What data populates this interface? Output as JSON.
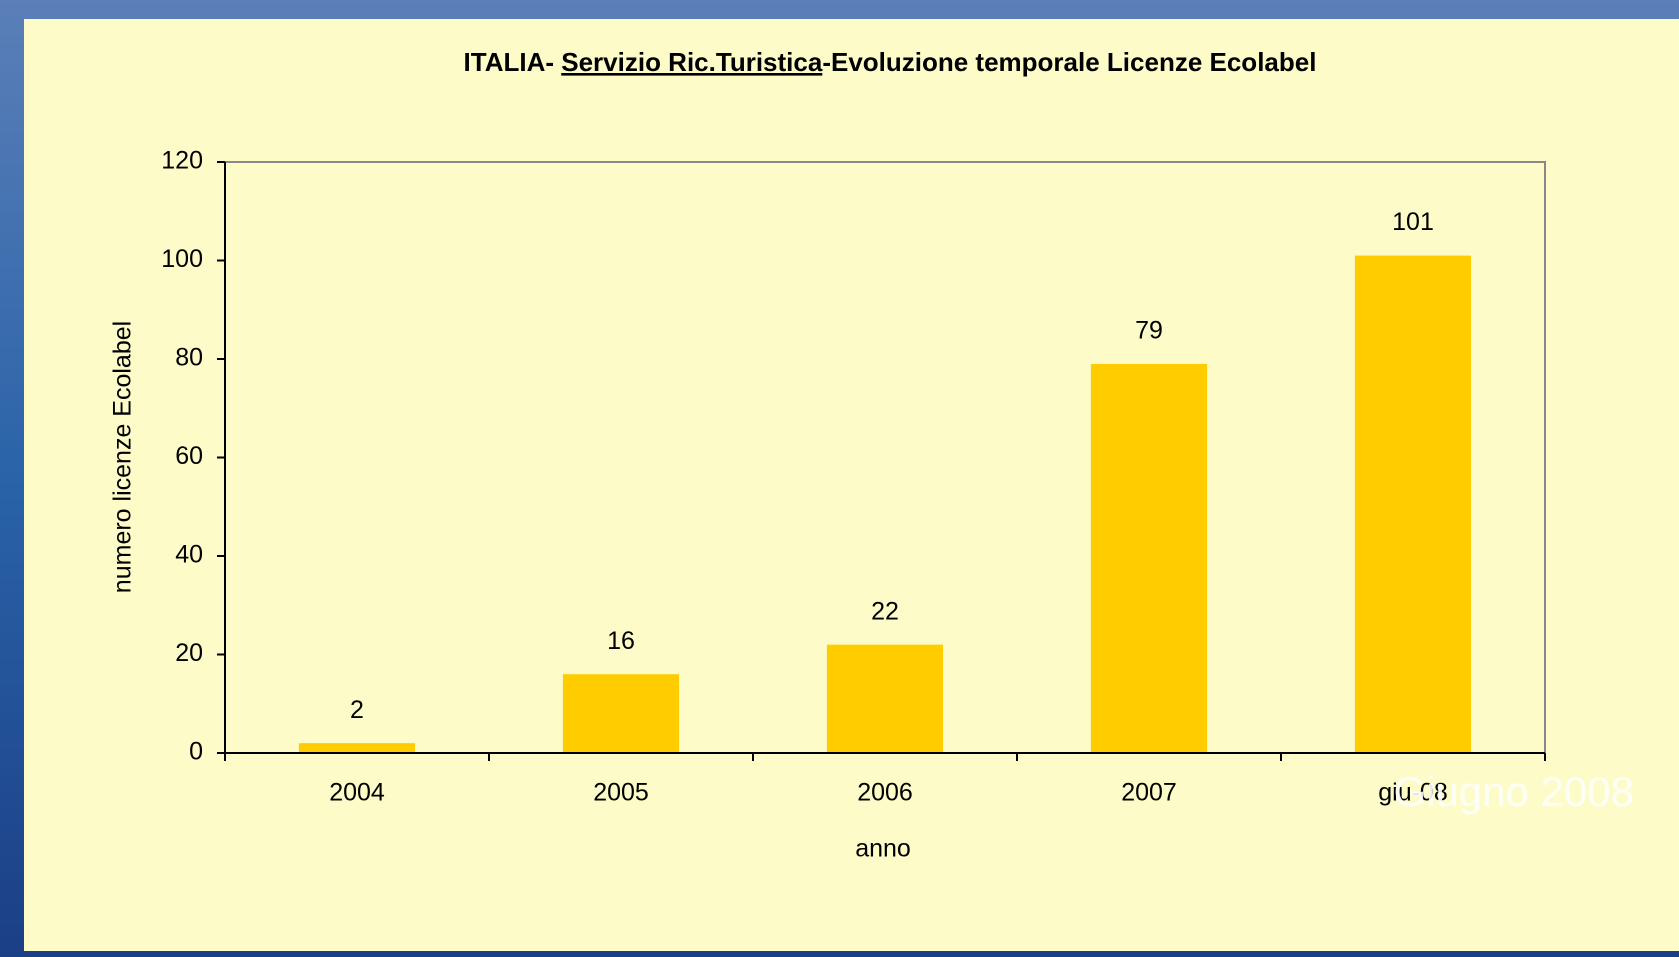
{
  "chart_data": {
    "type": "bar",
    "title_parts": [
      "ITALIA- ",
      "Servizio Ric.Turistica",
      "-Evoluzione temporale Licenze Ecolabel"
    ],
    "categories": [
      "2004",
      "2005",
      "2006",
      "2007",
      "giu-08"
    ],
    "values": [
      2,
      16,
      22,
      79,
      101
    ],
    "color": "#ffcc00",
    "ylim": [
      0,
      120
    ],
    "yticks": [
      0,
      20,
      40,
      60,
      80,
      100,
      120
    ],
    "xlabel": "anno",
    "ylabel": "numero licenze Ecolabel",
    "annotation": "Giugno 2008"
  }
}
